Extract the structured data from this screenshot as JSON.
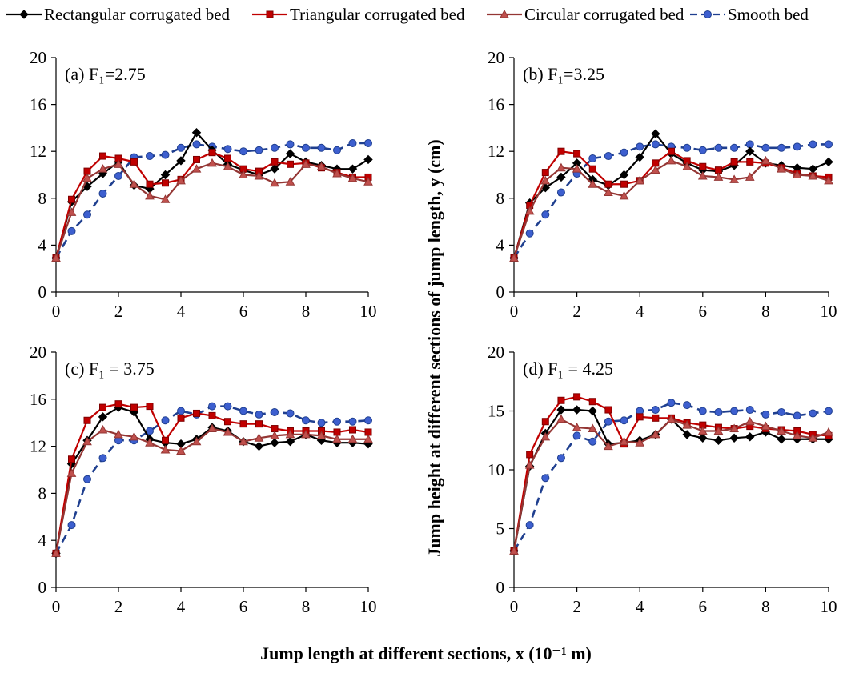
{
  "legend": {
    "placement": "top",
    "items": [
      {
        "label": "Rectangular corrugated bed",
        "color": "#000000",
        "marker": "diamond",
        "dash": "solid"
      },
      {
        "label": "Triangular corrugated bed",
        "color": "#c00000",
        "marker": "square",
        "dash": "solid"
      },
      {
        "label": "Circular corrugated bed",
        "color": "#943634",
        "marker": "triangle",
        "dash": "solid"
      },
      {
        "label": "Smooth bed",
        "color": "#1f3f8f",
        "marker": "circle",
        "dash": "dashed"
      }
    ]
  },
  "xlabel": "Jump length at different sections, x (10⁻¹ m)",
  "ylabel": "Jump height at different sections of jump length, y (cm)",
  "chart_data": [
    {
      "type": "line",
      "title": "(a) F₁=2.75",
      "xlim": [
        0,
        10
      ],
      "xticks": [
        0,
        2,
        4,
        6,
        8,
        10
      ],
      "ylim": [
        0,
        20
      ],
      "yticks": [
        0,
        4,
        8,
        12,
        16,
        20
      ],
      "grid": false,
      "x": [
        0,
        0.5,
        1,
        1.5,
        2,
        2.5,
        3,
        3.5,
        4,
        4.5,
        5,
        5.5,
        6,
        6.5,
        7,
        7.5,
        8,
        8.5,
        9,
        9.5,
        10
      ],
      "series": [
        {
          "name": "Rectangular corrugated bed",
          "values": [
            2.9,
            7.7,
            9.0,
            10.1,
            11.1,
            9.1,
            8.8,
            10.0,
            11.2,
            13.6,
            12.1,
            10.9,
            10.4,
            10.0,
            10.5,
            11.8,
            11.1,
            10.8,
            10.5,
            10.5,
            11.3
          ]
        },
        {
          "name": "Triangular corrugated bed",
          "values": [
            2.9,
            7.9,
            10.3,
            11.6,
            11.4,
            11.1,
            9.2,
            9.3,
            9.6,
            11.3,
            11.9,
            11.4,
            10.5,
            10.3,
            11.1,
            10.9,
            11.0,
            10.6,
            10.2,
            9.8,
            9.8
          ]
        },
        {
          "name": "Circular corrugated bed",
          "values": [
            2.9,
            6.8,
            9.7,
            10.5,
            10.9,
            9.2,
            8.2,
            7.9,
            9.5,
            10.5,
            11.0,
            10.7,
            10.0,
            9.9,
            9.3,
            9.4,
            10.9,
            10.7,
            10.1,
            9.7,
            9.4
          ]
        },
        {
          "name": "Smooth bed",
          "values": [
            2.9,
            5.2,
            6.6,
            8.4,
            9.9,
            11.5,
            11.6,
            11.7,
            12.3,
            12.6,
            12.4,
            12.2,
            12.0,
            12.1,
            12.3,
            12.6,
            12.3,
            12.3,
            12.1,
            12.7,
            12.7
          ]
        }
      ]
    },
    {
      "type": "line",
      "title": "(b) F₁=3.25",
      "xlim": [
        0,
        10
      ],
      "xticks": [
        0,
        2,
        4,
        6,
        8,
        10
      ],
      "ylim": [
        0,
        20
      ],
      "yticks": [
        0,
        4,
        8,
        12,
        16,
        20
      ],
      "grid": false,
      "x": [
        0,
        0.5,
        1,
        1.5,
        2,
        2.5,
        3,
        3.5,
        4,
        4.5,
        5,
        5.5,
        6,
        6.5,
        7,
        7.5,
        8,
        8.5,
        9,
        9.5,
        10
      ],
      "series": [
        {
          "name": "Rectangular corrugated bed",
          "values": [
            2.9,
            7.6,
            8.9,
            9.8,
            11.0,
            9.6,
            9.1,
            10.0,
            11.5,
            13.5,
            11.8,
            11.0,
            10.4,
            10.3,
            10.8,
            12.0,
            11.0,
            10.8,
            10.6,
            10.5,
            11.1
          ]
        },
        {
          "name": "Triangular corrugated bed",
          "values": [
            2.9,
            7.4,
            10.2,
            12.0,
            11.8,
            10.5,
            9.2,
            9.2,
            9.5,
            11.0,
            12.0,
            11.2,
            10.7,
            10.4,
            11.1,
            11.1,
            11.0,
            10.6,
            10.1,
            9.9,
            9.8
          ]
        },
        {
          "name": "Circular corrugated bed",
          "values": [
            2.9,
            6.9,
            9.5,
            10.6,
            10.5,
            9.2,
            8.5,
            8.2,
            9.5,
            10.4,
            11.2,
            10.7,
            9.9,
            9.8,
            9.6,
            9.8,
            11.2,
            10.5,
            10.0,
            9.9,
            9.5
          ]
        },
        {
          "name": "Smooth bed",
          "values": [
            2.9,
            5.0,
            6.6,
            8.5,
            10.1,
            11.4,
            11.6,
            11.9,
            12.4,
            12.6,
            12.4,
            12.3,
            12.1,
            12.3,
            12.3,
            12.6,
            12.3,
            12.3,
            12.4,
            12.6,
            12.6
          ]
        }
      ]
    },
    {
      "type": "line",
      "title": "(c) F₁ = 3.75",
      "xlim": [
        0,
        10
      ],
      "xticks": [
        0,
        2,
        4,
        6,
        8,
        10
      ],
      "ylim": [
        0,
        20
      ],
      "yticks": [
        0,
        4,
        8,
        12,
        16,
        20
      ],
      "grid": false,
      "x": [
        0,
        0.5,
        1,
        1.5,
        2,
        2.5,
        3,
        3.5,
        4,
        4.5,
        5,
        5.5,
        6,
        6.5,
        7,
        7.5,
        8,
        8.5,
        9,
        9.5,
        10
      ],
      "series": [
        {
          "name": "Rectangular corrugated bed",
          "values": [
            2.9,
            10.5,
            12.5,
            14.5,
            15.3,
            14.9,
            12.6,
            12.3,
            12.2,
            12.6,
            13.6,
            13.3,
            12.4,
            12.0,
            12.3,
            12.4,
            13.0,
            12.5,
            12.3,
            12.3,
            12.2
          ]
        },
        {
          "name": "Triangular corrugated bed",
          "values": [
            2.9,
            10.9,
            14.2,
            15.3,
            15.6,
            15.3,
            15.4,
            12.5,
            14.4,
            14.8,
            14.6,
            14.1,
            13.9,
            13.9,
            13.5,
            13.3,
            13.3,
            13.3,
            13.2,
            13.4,
            13.2
          ]
        },
        {
          "name": "Circular corrugated bed",
          "values": [
            2.9,
            9.7,
            12.4,
            13.4,
            13.0,
            12.8,
            12.3,
            11.7,
            11.6,
            12.4,
            13.5,
            13.2,
            12.4,
            12.7,
            12.9,
            13.0,
            13.0,
            12.9,
            12.6,
            12.6,
            12.6
          ]
        },
        {
          "name": "Smooth bed",
          "values": [
            2.9,
            5.3,
            9.2,
            11.0,
            12.5,
            12.5,
            13.3,
            14.2,
            15.0,
            14.7,
            15.4,
            15.4,
            15.0,
            14.7,
            14.9,
            14.8,
            14.2,
            14.0,
            14.1,
            14.1,
            14.2
          ]
        }
      ]
    },
    {
      "type": "line",
      "title": "(d) F₁ = 4.25",
      "xlim": [
        0,
        10
      ],
      "xticks": [
        0,
        2,
        4,
        6,
        8,
        10
      ],
      "ylim": [
        0,
        20
      ],
      "yticks": [
        0,
        5,
        10,
        15,
        20
      ],
      "grid": false,
      "x": [
        0,
        0.5,
        1,
        1.5,
        2,
        2.5,
        3,
        3.5,
        4,
        4.5,
        5,
        5.5,
        6,
        6.5,
        7,
        7.5,
        8,
        8.5,
        9,
        9.5,
        10
      ],
      "series": [
        {
          "name": "Rectangular corrugated bed",
          "values": [
            3.1,
            10.3,
            13.1,
            15.1,
            15.1,
            15.0,
            12.2,
            12.3,
            12.5,
            13.0,
            14.3,
            13.0,
            12.7,
            12.5,
            12.7,
            12.8,
            13.2,
            12.6,
            12.6,
            12.6,
            12.6
          ]
        },
        {
          "name": "Triangular corrugated bed",
          "values": [
            3.1,
            11.3,
            14.1,
            15.9,
            16.2,
            15.8,
            15.1,
            12.2,
            14.5,
            14.4,
            14.4,
            14.0,
            13.8,
            13.6,
            13.5,
            13.7,
            13.5,
            13.4,
            13.3,
            13.0,
            12.9
          ]
        },
        {
          "name": "Circular corrugated bed",
          "values": [
            3.1,
            10.4,
            12.8,
            14.3,
            13.6,
            13.5,
            12.0,
            12.4,
            12.3,
            13.0,
            14.3,
            13.8,
            13.3,
            13.3,
            13.5,
            14.1,
            13.7,
            13.3,
            12.9,
            12.7,
            13.2
          ]
        },
        {
          "name": "Smooth bed",
          "values": [
            3.1,
            5.3,
            9.3,
            11.0,
            12.9,
            12.4,
            14.1,
            14.2,
            15.0,
            15.1,
            15.7,
            15.5,
            15.0,
            14.9,
            15.0,
            15.1,
            14.7,
            14.9,
            14.6,
            14.8,
            15.0
          ]
        }
      ]
    }
  ]
}
